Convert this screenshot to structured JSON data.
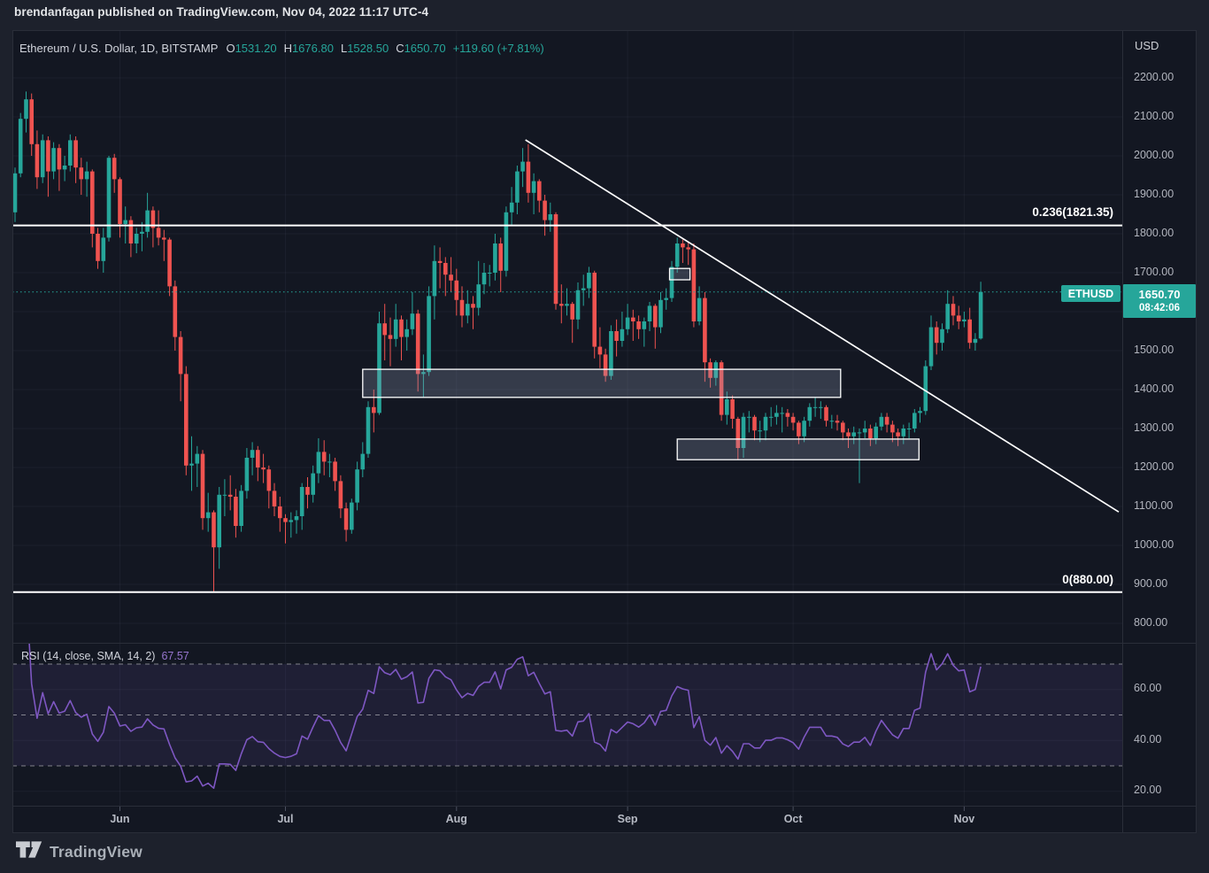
{
  "attribution": "brendanfagan published on TradingView.com, Nov 04, 2022 11:17 UTC-4",
  "legend": {
    "title": "Ethereum / U.S. Dollar, 1D, BITSTAMP",
    "ohlc": [
      {
        "k": "O",
        "v": "1531.20"
      },
      {
        "k": "H",
        "v": "1676.80"
      },
      {
        "k": "L",
        "v": "1528.50"
      },
      {
        "k": "C",
        "v": "1650.70"
      }
    ],
    "change": "+119.60 (+7.81%)"
  },
  "price_scale": {
    "currency": "USD",
    "tick_values": [
      2200,
      2100,
      2000,
      1900,
      1800,
      1700,
      1500,
      1400,
      1300,
      1200,
      1100,
      1000,
      900,
      800
    ],
    "symbol_badge": "ETHUSD",
    "last_price": "1650.70",
    "countdown": "08:42:06"
  },
  "time_axis": {
    "months": [
      {
        "label": "Jun",
        "day_index": 19
      },
      {
        "label": "Jul",
        "day_index": 49
      },
      {
        "label": "Aug",
        "day_index": 80
      },
      {
        "label": "Sep",
        "day_index": 111
      },
      {
        "label": "Oct",
        "day_index": 141
      },
      {
        "label": "Nov",
        "day_index": 172
      }
    ]
  },
  "rsi_panel": {
    "title": "RSI (14, close, SMA, 14, 2)",
    "value": "67.57",
    "tick_values": [
      60,
      40,
      20
    ]
  },
  "footer": {
    "logo_text": "TradingView"
  },
  "colors": {
    "background": "#1d212c",
    "pane": "#131722",
    "grid": "rgba(182,190,210,0.055)",
    "separator": "#2a2e39",
    "up": "#26a69a",
    "down": "#ef5350",
    "trendline": "#ffffff",
    "fib_line": "#ffffff",
    "zone_fill": "rgba(148,160,184,0.27)",
    "zone_border": "#ffffff",
    "current_line": "#26a69a",
    "rsi_line": "#7e57c2",
    "rsi_band": "rgba(126,87,194,0.12)",
    "rsi_dashed": "rgba(255,255,255,0.45)",
    "axis_text": "#b2b5be",
    "tick_mark": "#4c5160"
  },
  "chart_data": {
    "type": "candlestick",
    "symbol": "ETHUSD",
    "exchange": "BITSTAMP",
    "interval": "1D",
    "start_date": "2022-05-13",
    "price_axis": {
      "min": 800,
      "max": 2200,
      "step": 100
    },
    "current_price": 1650.7,
    "ohlc": [
      [
        1855,
        1970,
        1830,
        1955
      ],
      [
        1955,
        2110,
        1945,
        2095
      ],
      [
        2095,
        2165,
        2060,
        2145
      ],
      [
        2145,
        2160,
        2000,
        2030
      ],
      [
        2030,
        2065,
        1915,
        1945
      ],
      [
        1945,
        2055,
        1930,
        2040
      ],
      [
        2040,
        2050,
        1895,
        1960
      ],
      [
        1960,
        2035,
        1940,
        2020
      ],
      [
        2020,
        2030,
        1910,
        1965
      ],
      [
        1965,
        2000,
        1935,
        1975
      ],
      [
        1975,
        2055,
        1960,
        2040
      ],
      [
        2040,
        2050,
        1930,
        1970
      ],
      [
        1970,
        1995,
        1900,
        1940
      ],
      [
        1940,
        1985,
        1895,
        1960
      ],
      [
        1960,
        1965,
        1765,
        1800
      ],
      [
        1800,
        1815,
        1710,
        1730
      ],
      [
        1730,
        1815,
        1700,
        1790
      ],
      [
        1790,
        2000,
        1780,
        1995
      ],
      [
        1995,
        2005,
        1905,
        1940
      ],
      [
        1940,
        1945,
        1790,
        1825
      ],
      [
        1825,
        1870,
        1775,
        1835
      ],
      [
        1835,
        1845,
        1740,
        1775
      ],
      [
        1775,
        1815,
        1750,
        1800
      ],
      [
        1800,
        1830,
        1755,
        1805
      ],
      [
        1805,
        1905,
        1790,
        1860
      ],
      [
        1860,
        1870,
        1765,
        1815
      ],
      [
        1815,
        1860,
        1770,
        1790
      ],
      [
        1790,
        1810,
        1730,
        1785
      ],
      [
        1785,
        1790,
        1640,
        1665
      ],
      [
        1665,
        1680,
        1500,
        1535
      ],
      [
        1535,
        1550,
        1370,
        1440
      ],
      [
        1440,
        1460,
        1180,
        1205
      ],
      [
        1205,
        1280,
        1140,
        1210
      ],
      [
        1210,
        1255,
        1150,
        1235
      ],
      [
        1235,
        1245,
        1040,
        1070
      ],
      [
        1070,
        1135,
        1035,
        1085
      ],
      [
        1085,
        1090,
        881,
        995
      ],
      [
        995,
        1150,
        940,
        1130
      ],
      [
        1130,
        1170,
        1075,
        1130
      ],
      [
        1130,
        1180,
        1090,
        1125
      ],
      [
        1125,
        1145,
        1020,
        1050
      ],
      [
        1050,
        1155,
        1035,
        1140
      ],
      [
        1140,
        1250,
        1120,
        1225
      ],
      [
        1225,
        1265,
        1180,
        1245
      ],
      [
        1245,
        1255,
        1165,
        1200
      ],
      [
        1200,
        1235,
        1160,
        1195
      ],
      [
        1195,
        1205,
        1095,
        1140
      ],
      [
        1140,
        1160,
        1075,
        1100
      ],
      [
        1100,
        1125,
        1035,
        1070
      ],
      [
        1070,
        1080,
        1005,
        1060
      ],
      [
        1060,
        1085,
        1020,
        1065
      ],
      [
        1065,
        1090,
        1030,
        1075
      ],
      [
        1075,
        1160,
        1040,
        1150
      ],
      [
        1150,
        1175,
        1095,
        1130
      ],
      [
        1130,
        1205,
        1110,
        1185
      ],
      [
        1185,
        1275,
        1160,
        1240
      ],
      [
        1240,
        1270,
        1180,
        1215
      ],
      [
        1215,
        1235,
        1175,
        1215
      ],
      [
        1215,
        1225,
        1140,
        1165
      ],
      [
        1165,
        1180,
        1070,
        1095
      ],
      [
        1095,
        1110,
        1010,
        1040
      ],
      [
        1040,
        1120,
        1030,
        1110
      ],
      [
        1110,
        1215,
        1090,
        1195
      ],
      [
        1195,
        1265,
        1175,
        1235
      ],
      [
        1235,
        1370,
        1225,
        1355
      ],
      [
        1355,
        1400,
        1290,
        1340
      ],
      [
        1340,
        1600,
        1335,
        1570
      ],
      [
        1570,
        1620,
        1475,
        1540
      ],
      [
        1540,
        1585,
        1460,
        1530
      ],
      [
        1530,
        1620,
        1510,
        1580
      ],
      [
        1580,
        1590,
        1475,
        1535
      ],
      [
        1535,
        1580,
        1500,
        1555
      ],
      [
        1555,
        1650,
        1540,
        1595
      ],
      [
        1595,
        1605,
        1395,
        1440
      ],
      [
        1440,
        1490,
        1380,
        1445
      ],
      [
        1445,
        1665,
        1435,
        1640
      ],
      [
        1640,
        1770,
        1580,
        1730
      ],
      [
        1730,
        1765,
        1660,
        1725
      ],
      [
        1725,
        1740,
        1640,
        1695
      ],
      [
        1695,
        1740,
        1650,
        1680
      ],
      [
        1680,
        1710,
        1590,
        1630
      ],
      [
        1630,
        1665,
        1560,
        1590
      ],
      [
        1590,
        1655,
        1570,
        1620
      ],
      [
        1620,
        1640,
        1555,
        1610
      ],
      [
        1610,
        1730,
        1590,
        1670
      ],
      [
        1670,
        1725,
        1645,
        1700
      ],
      [
        1700,
        1720,
        1665,
        1700
      ],
      [
        1700,
        1800,
        1680,
        1775
      ],
      [
        1775,
        1790,
        1650,
        1705
      ],
      [
        1705,
        1870,
        1690,
        1855
      ],
      [
        1855,
        1920,
        1820,
        1880
      ],
      [
        1880,
        1975,
        1850,
        1960
      ],
      [
        1960,
        2020,
        1920,
        1985
      ],
      [
        1985,
        2030,
        1880,
        1905
      ],
      [
        1905,
        1955,
        1850,
        1935
      ],
      [
        1935,
        1940,
        1855,
        1885
      ],
      [
        1885,
        1900,
        1795,
        1835
      ],
      [
        1835,
        1880,
        1805,
        1850
      ],
      [
        1850,
        1855,
        1605,
        1620
      ],
      [
        1620,
        1670,
        1570,
        1615
      ],
      [
        1615,
        1660,
        1590,
        1620
      ],
      [
        1620,
        1625,
        1520,
        1580
      ],
      [
        1580,
        1675,
        1555,
        1655
      ],
      [
        1655,
        1695,
        1615,
        1660
      ],
      [
        1660,
        1715,
        1635,
        1700
      ],
      [
        1700,
        1705,
        1480,
        1510
      ],
      [
        1510,
        1560,
        1455,
        1490
      ],
      [
        1490,
        1505,
        1420,
        1435
      ],
      [
        1435,
        1565,
        1425,
        1550
      ],
      [
        1550,
        1580,
        1485,
        1525
      ],
      [
        1525,
        1600,
        1510,
        1555
      ],
      [
        1555,
        1620,
        1540,
        1585
      ],
      [
        1585,
        1605,
        1525,
        1575
      ],
      [
        1575,
        1590,
        1530,
        1555
      ],
      [
        1555,
        1585,
        1510,
        1575
      ],
      [
        1575,
        1625,
        1550,
        1615
      ],
      [
        1615,
        1620,
        1505,
        1560
      ],
      [
        1560,
        1650,
        1545,
        1630
      ],
      [
        1630,
        1660,
        1605,
        1635
      ],
      [
        1635,
        1730,
        1625,
        1715
      ],
      [
        1715,
        1790,
        1700,
        1775
      ],
      [
        1775,
        1785,
        1725,
        1765
      ],
      [
        1765,
        1780,
        1720,
        1760
      ],
      [
        1760,
        1775,
        1560,
        1575
      ],
      [
        1575,
        1665,
        1565,
        1635
      ],
      [
        1635,
        1650,
        1420,
        1470
      ],
      [
        1470,
        1480,
        1405,
        1430
      ],
      [
        1430,
        1475,
        1410,
        1470
      ],
      [
        1470,
        1475,
        1320,
        1335
      ],
      [
        1335,
        1395,
        1310,
        1375
      ],
      [
        1375,
        1385,
        1300,
        1325
      ],
      [
        1325,
        1330,
        1220,
        1250
      ],
      [
        1250,
        1340,
        1225,
        1330
      ],
      [
        1330,
        1345,
        1290,
        1330
      ],
      [
        1330,
        1335,
        1270,
        1295
      ],
      [
        1295,
        1320,
        1265,
        1295
      ],
      [
        1295,
        1340,
        1270,
        1330
      ],
      [
        1330,
        1355,
        1305,
        1330
      ],
      [
        1330,
        1360,
        1310,
        1340
      ],
      [
        1340,
        1355,
        1290,
        1340
      ],
      [
        1340,
        1350,
        1305,
        1330
      ],
      [
        1330,
        1340,
        1295,
        1315
      ],
      [
        1315,
        1320,
        1260,
        1280
      ],
      [
        1280,
        1330,
        1265,
        1320
      ],
      [
        1320,
        1365,
        1305,
        1355
      ],
      [
        1355,
        1380,
        1330,
        1355
      ],
      [
        1355,
        1370,
        1325,
        1355
      ],
      [
        1355,
        1360,
        1305,
        1320
      ],
      [
        1320,
        1335,
        1300,
        1320
      ],
      [
        1320,
        1335,
        1295,
        1315
      ],
      [
        1315,
        1320,
        1270,
        1290
      ],
      [
        1290,
        1300,
        1250,
        1280
      ],
      [
        1280,
        1305,
        1260,
        1290
      ],
      [
        1290,
        1300,
        1160,
        1290
      ],
      [
        1290,
        1320,
        1275,
        1300
      ],
      [
        1300,
        1310,
        1255,
        1275
      ],
      [
        1275,
        1315,
        1260,
        1305
      ],
      [
        1305,
        1340,
        1295,
        1330
      ],
      [
        1330,
        1340,
        1290,
        1310
      ],
      [
        1310,
        1320,
        1265,
        1290
      ],
      [
        1290,
        1300,
        1255,
        1280
      ],
      [
        1280,
        1310,
        1260,
        1300
      ],
      [
        1300,
        1315,
        1275,
        1300
      ],
      [
        1300,
        1350,
        1290,
        1340
      ],
      [
        1340,
        1355,
        1315,
        1345
      ],
      [
        1345,
        1475,
        1335,
        1460
      ],
      [
        1460,
        1590,
        1450,
        1560
      ],
      [
        1560,
        1575,
        1490,
        1520
      ],
      [
        1520,
        1570,
        1500,
        1555
      ],
      [
        1555,
        1655,
        1545,
        1620
      ],
      [
        1620,
        1640,
        1565,
        1590
      ],
      [
        1590,
        1615,
        1555,
        1575
      ],
      [
        1575,
        1600,
        1560,
        1580
      ],
      [
        1580,
        1610,
        1505,
        1520
      ],
      [
        1520,
        1545,
        1500,
        1530
      ],
      [
        1531.2,
        1676.8,
        1528.5,
        1650.7
      ]
    ],
    "overlays": {
      "fib_levels": [
        {
          "label": "0.236(1821.35)",
          "price": 1821.35
        },
        {
          "label": "0(880.00)",
          "price": 880
        }
      ],
      "trendline": {
        "start": {
          "index": 92.5,
          "price": 2041
        },
        "end": {
          "index": 200,
          "price": 1086
        }
      },
      "zones": [
        {
          "from_index": 63.0,
          "to_index": 149.6,
          "top_price": 1452,
          "bottom_price": 1380
        },
        {
          "from_index": 120.0,
          "to_index": 163.8,
          "top_price": 1273,
          "bottom_price": 1220
        },
        {
          "from_index": 118.6,
          "to_index": 122.3,
          "top_price": 1711,
          "bottom_price": 1682
        }
      ]
    },
    "indicator": {
      "type": "rsi",
      "period": 14,
      "source": "close",
      "bands": {
        "upper": 70,
        "middle": 50,
        "lower": 30
      },
      "last_value": 67.57
    }
  }
}
